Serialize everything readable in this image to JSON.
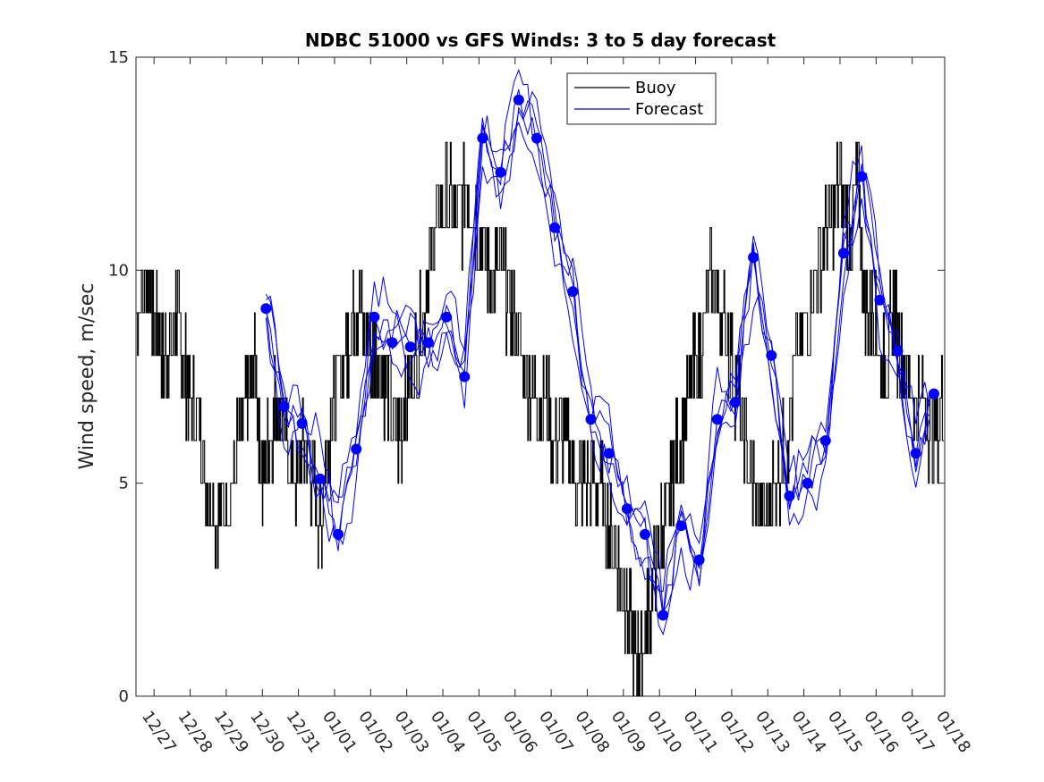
{
  "chart_data": {
    "type": "line",
    "title": "NDBC 51000 vs GFS Winds: 3 to 5 day forecast",
    "xlabel": "",
    "ylabel": "Wind speed, m/sec",
    "ylim": [
      0,
      15
    ],
    "xlim": [
      0,
      22.4
    ],
    "yticks": [
      0,
      5,
      10,
      15
    ],
    "x_tick_labels": [
      "12/27",
      "12/28",
      "12/29",
      "12/30",
      "12/31",
      "01/01",
      "01/02",
      "01/03",
      "01/04",
      "01/05",
      "01/06",
      "01/07",
      "01/08",
      "01/09",
      "01/10",
      "01/11",
      "01/12",
      "01/13",
      "01/14",
      "01/15",
      "01/16",
      "01/17",
      "01/18"
    ],
    "x_tick_days": [
      0.5,
      1.5,
      2.5,
      3.5,
      4.5,
      5.5,
      6.5,
      7.5,
      8.5,
      9.5,
      10.5,
      11.5,
      12.5,
      13.5,
      14.5,
      15.5,
      16.5,
      17.5,
      18.5,
      19.5,
      20.5,
      21.5,
      22.5
    ],
    "legend": {
      "position": "top-center",
      "entries": [
        "Buoy",
        "Forecast"
      ]
    },
    "colors": {
      "buoy": "#000000",
      "forecast": "#0000ff",
      "axes": "#262626"
    },
    "series": [
      {
        "name": "Buoy",
        "x": [
          0.0,
          0.3,
          0.5,
          0.7,
          0.9,
          1.1,
          1.3,
          1.5,
          1.8,
          2.0,
          2.3,
          2.6,
          2.9,
          3.1,
          3.3,
          3.5,
          3.7,
          3.9,
          4.1,
          4.4,
          4.7,
          4.9,
          5.1,
          5.3,
          5.5,
          5.8,
          6.0,
          6.2,
          6.5,
          6.7,
          7.0,
          7.3,
          7.5,
          7.8,
          8.1,
          8.3,
          8.6,
          8.9,
          9.2,
          9.5,
          9.8,
          10.1,
          10.4,
          10.7,
          11.0,
          11.3,
          11.6,
          11.9,
          12.2,
          12.5,
          12.8,
          13.1,
          13.4,
          13.6,
          13.8,
          14.0,
          14.2,
          14.4,
          14.6,
          14.8,
          15.0,
          15.3,
          15.6,
          15.9,
          16.2,
          16.5,
          16.8,
          17.1,
          17.4,
          17.7,
          18.0,
          18.3,
          18.6,
          18.9,
          19.2,
          19.5,
          19.8,
          20.0,
          20.2,
          20.4,
          20.6,
          20.8,
          21.0,
          21.2,
          21.5,
          21.8,
          22.1,
          22.4
        ],
        "y": [
          9,
          10,
          9,
          8,
          8,
          9,
          8,
          7,
          6,
          5,
          4,
          5,
          6,
          7,
          8,
          5,
          6,
          7,
          6,
          5,
          6,
          5,
          4,
          6,
          7,
          8,
          9,
          9,
          8,
          8,
          7,
          6,
          7,
          8,
          10,
          11,
          12,
          11,
          12,
          11,
          10,
          10,
          9,
          8,
          7,
          7,
          6,
          6,
          5,
          5,
          5,
          4,
          3,
          2,
          1,
          1,
          2,
          3,
          4,
          5,
          6,
          7,
          8,
          10,
          9,
          8,
          6,
          5,
          4,
          5,
          6,
          8,
          9,
          10,
          11,
          12,
          11,
          12,
          9,
          9,
          8,
          8,
          9,
          8,
          7,
          7,
          6,
          7
        ]
      },
      {
        "name": "Forecast",
        "points_x": [
          3.6,
          4.1,
          4.6,
          5.1,
          5.6,
          6.1,
          6.6,
          7.1,
          7.6,
          8.1,
          8.6,
          9.1,
          9.6,
          10.1,
          10.6,
          11.1,
          11.6,
          12.1,
          12.6,
          13.1,
          13.6,
          14.1,
          14.6,
          15.1,
          15.6,
          16.1,
          16.6,
          17.1,
          17.6,
          18.1,
          18.6,
          19.1,
          19.6,
          20.1,
          20.6,
          21.1,
          21.6,
          22.1
        ],
        "points_y": [
          9.1,
          6.8,
          6.4,
          5.1,
          3.8,
          5.8,
          8.9,
          8.3,
          8.2,
          8.3,
          8.9,
          7.5,
          13.1,
          12.3,
          14.0,
          13.1,
          11.0,
          9.5,
          6.5,
          5.7,
          4.4,
          3.8,
          1.9,
          4.0,
          3.2,
          6.5,
          6.9,
          10.3,
          8.0,
          4.7,
          5.0,
          6.0,
          10.4,
          12.2,
          9.3,
          8.1,
          5.7,
          7.1
        ]
      }
    ]
  }
}
